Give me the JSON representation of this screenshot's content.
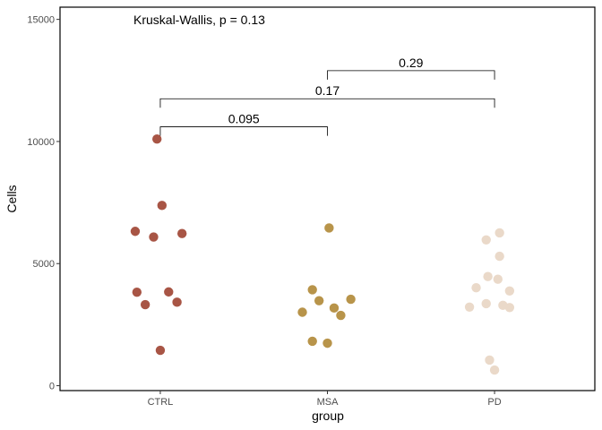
{
  "chart_data": {
    "type": "scatter",
    "title": "",
    "xlabel": "group",
    "ylabel": "Cells",
    "ylim": [
      -200,
      15500
    ],
    "yticks": [
      0,
      5000,
      10000,
      15000
    ],
    "yticklabels": [
      "0",
      "5000",
      "10000",
      "15000"
    ],
    "categories": [
      "CTRL",
      "MSA",
      "PD"
    ],
    "grid": false,
    "legend": "none",
    "annotation": "Kruskal-Wallis, p = 0.13",
    "series": [
      {
        "category": "CTRL",
        "color": "#a85545",
        "points": [
          {
            "jitter": -0.02,
            "y": 10100
          },
          {
            "jitter": 0.01,
            "y": 7380
          },
          {
            "jitter": -0.15,
            "y": 6320
          },
          {
            "jitter": -0.04,
            "y": 6090
          },
          {
            "jitter": 0.13,
            "y": 6230
          },
          {
            "jitter": -0.14,
            "y": 3830
          },
          {
            "jitter": 0.05,
            "y": 3840
          },
          {
            "jitter": -0.09,
            "y": 3320
          },
          {
            "jitter": 0.1,
            "y": 3420
          },
          {
            "jitter": 0.0,
            "y": 1450
          }
        ]
      },
      {
        "category": "MSA",
        "color": "#b8944a",
        "points": [
          {
            "jitter": 0.01,
            "y": 6460
          },
          {
            "jitter": -0.09,
            "y": 3930
          },
          {
            "jitter": -0.05,
            "y": 3480
          },
          {
            "jitter": 0.14,
            "y": 3540
          },
          {
            "jitter": -0.15,
            "y": 3010
          },
          {
            "jitter": 0.04,
            "y": 3180
          },
          {
            "jitter": 0.08,
            "y": 2880
          },
          {
            "jitter": -0.09,
            "y": 1820
          },
          {
            "jitter": 0.0,
            "y": 1740
          }
        ]
      },
      {
        "category": "PD",
        "color": "#ead9c9",
        "points": [
          {
            "jitter": 0.03,
            "y": 6260
          },
          {
            "jitter": -0.05,
            "y": 5970
          },
          {
            "jitter": 0.03,
            "y": 5300
          },
          {
            "jitter": -0.04,
            "y": 4470
          },
          {
            "jitter": 0.02,
            "y": 4360
          },
          {
            "jitter": -0.11,
            "y": 4010
          },
          {
            "jitter": 0.09,
            "y": 3880
          },
          {
            "jitter": -0.05,
            "y": 3360
          },
          {
            "jitter": 0.05,
            "y": 3290
          },
          {
            "jitter": 0.09,
            "y": 3200
          },
          {
            "jitter": -0.15,
            "y": 3220
          },
          {
            "jitter": -0.03,
            "y": 1050
          },
          {
            "jitter": 0.0,
            "y": 640
          }
        ]
      }
    ],
    "comparisons": [
      {
        "from": "CTRL",
        "to": "MSA",
        "label": "0.095",
        "y": 10600
      },
      {
        "from": "CTRL",
        "to": "PD",
        "label": "0.17",
        "y": 11750
      },
      {
        "from": "MSA",
        "to": "PD",
        "label": "0.29",
        "y": 12900
      }
    ]
  }
}
